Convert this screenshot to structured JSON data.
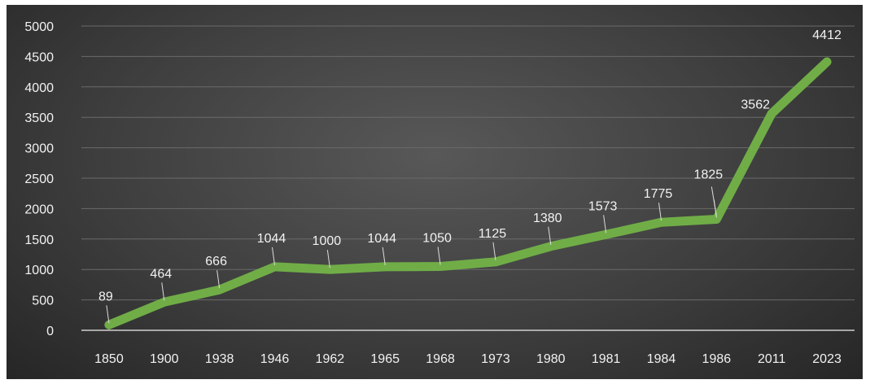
{
  "chart_data": {
    "type": "line",
    "categories": [
      "1850",
      "1900",
      "1938",
      "1946",
      "1962",
      "1965",
      "1968",
      "1973",
      "1980",
      "1981",
      "1984",
      "1986",
      "2011",
      "2023"
    ],
    "values": [
      89,
      464,
      666,
      1044,
      1000,
      1044,
      1050,
      1125,
      1380,
      1573,
      1775,
      1825,
      3562,
      4412
    ],
    "yticks": [
      "0",
      "500",
      "1000",
      "1500",
      "2000",
      "2500",
      "3000",
      "3500",
      "4000",
      "4500",
      "5000"
    ],
    "ylim": [
      0,
      5000
    ],
    "grid": true,
    "line_color": "#70ad47",
    "background_color": "#404040"
  }
}
